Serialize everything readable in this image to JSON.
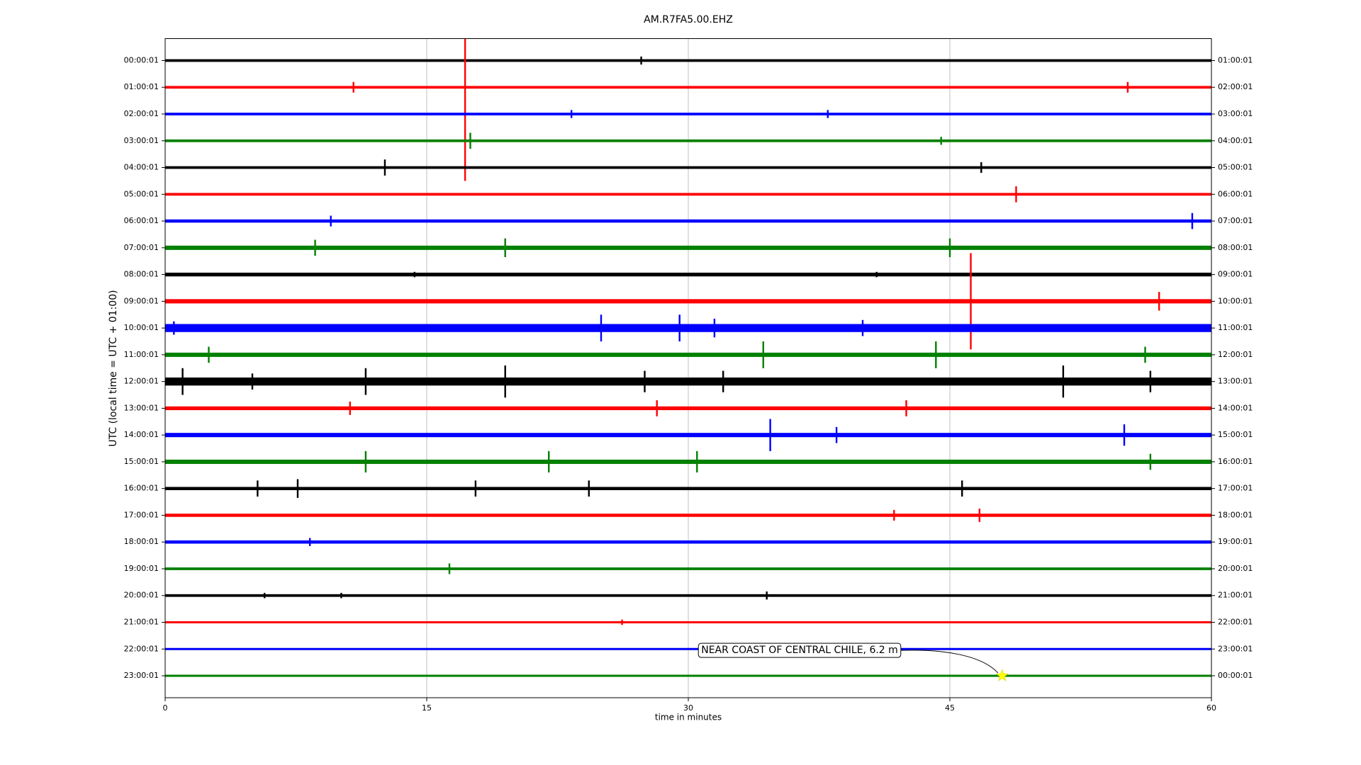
{
  "chart_data": {
    "type": "helicorder",
    "title": "AM.R7FA5.00.EHZ",
    "xlabel": "time in minutes",
    "ylabel": "UTC (local time = UTC + 01:00)",
    "xlim": [
      0,
      60
    ],
    "xticks": [
      0,
      15,
      30,
      45,
      60
    ],
    "grid": true,
    "rows": [
      {
        "label": "00:00:01",
        "right_label": "01:00:01",
        "color": "#000000",
        "noise": 0.05,
        "events": [
          {
            "minute": 27.3,
            "amplitude": 0.15
          }
        ]
      },
      {
        "label": "01:00:01",
        "right_label": "02:00:01",
        "color": "#ff0000",
        "noise": 0.05,
        "events": [
          {
            "minute": 10.8,
            "amplitude": 0.2
          },
          {
            "minute": 17.2,
            "amplitude": 3.5
          },
          {
            "minute": 55.2,
            "amplitude": 0.2
          }
        ]
      },
      {
        "label": "02:00:01",
        "right_label": "03:00:01",
        "color": "#0000ff",
        "noise": 0.05,
        "events": [
          {
            "minute": 23.3,
            "amplitude": 0.15
          },
          {
            "minute": 38,
            "amplitude": 0.15
          }
        ]
      },
      {
        "label": "03:00:01",
        "right_label": "04:00:01",
        "color": "#008000",
        "noise": 0.05,
        "events": [
          {
            "minute": 17.5,
            "amplitude": 0.3
          },
          {
            "minute": 44.5,
            "amplitude": 0.15
          }
        ]
      },
      {
        "label": "04:00:01",
        "right_label": "05:00:01",
        "color": "#000000",
        "noise": 0.05,
        "events": [
          {
            "minute": 12.6,
            "amplitude": 0.3
          },
          {
            "minute": 46.8,
            "amplitude": 0.2
          }
        ]
      },
      {
        "label": "05:00:01",
        "right_label": "06:00:01",
        "color": "#ff0000",
        "noise": 0.05,
        "events": [
          {
            "minute": 48.8,
            "amplitude": 0.3
          }
        ]
      },
      {
        "label": "06:00:01",
        "right_label": "07:00:01",
        "color": "#0000ff",
        "noise": 0.06,
        "events": [
          {
            "minute": 9.5,
            "amplitude": 0.2
          },
          {
            "minute": 58.9,
            "amplitude": 0.3
          }
        ]
      },
      {
        "label": "07:00:01",
        "right_label": "08:00:01",
        "color": "#008000",
        "noise": 0.08,
        "events": [
          {
            "minute": 8.6,
            "amplitude": 0.3
          },
          {
            "minute": 19.5,
            "amplitude": 0.35
          },
          {
            "minute": 45,
            "amplitude": 0.35
          }
        ]
      },
      {
        "label": "08:00:01",
        "right_label": "09:00:01",
        "color": "#000000",
        "noise": 0.07,
        "events": [
          {
            "minute": 14.3,
            "amplitude": 0.1
          },
          {
            "minute": 40.8,
            "amplitude": 0.1
          }
        ]
      },
      {
        "label": "09:00:01",
        "right_label": "10:00:01",
        "color": "#ff0000",
        "noise": 0.08,
        "events": [
          {
            "minute": 46.2,
            "amplitude": 1.8
          },
          {
            "minute": 57,
            "amplitude": 0.35
          }
        ]
      },
      {
        "label": "10:00:01",
        "right_label": "11:00:01",
        "color": "#0000ff",
        "noise": 0.15,
        "events": [
          {
            "minute": 0.5,
            "amplitude": 0.25
          },
          {
            "minute": 25,
            "amplitude": 0.5
          },
          {
            "minute": 29.5,
            "amplitude": 0.5
          },
          {
            "minute": 31.5,
            "amplitude": 0.35
          },
          {
            "minute": 40,
            "amplitude": 0.3
          }
        ]
      },
      {
        "label": "11:00:01",
        "right_label": "12:00:01",
        "color": "#008000",
        "noise": 0.08,
        "events": [
          {
            "minute": 2.5,
            "amplitude": 0.3
          },
          {
            "minute": 34.3,
            "amplitude": 0.5
          },
          {
            "minute": 44.2,
            "amplitude": 0.5
          },
          {
            "minute": 56.2,
            "amplitude": 0.3
          }
        ]
      },
      {
        "label": "12:00:01",
        "right_label": "13:00:01",
        "color": "#000000",
        "noise": 0.15,
        "events": [
          {
            "minute": 1,
            "amplitude": 0.5
          },
          {
            "minute": 5,
            "amplitude": 0.3
          },
          {
            "minute": 11.5,
            "amplitude": 0.5
          },
          {
            "minute": 19.5,
            "amplitude": 0.6
          },
          {
            "minute": 27.5,
            "amplitude": 0.4
          },
          {
            "minute": 32,
            "amplitude": 0.4
          },
          {
            "minute": 51.5,
            "amplitude": 0.6
          },
          {
            "minute": 56.5,
            "amplitude": 0.4
          }
        ]
      },
      {
        "label": "13:00:01",
        "right_label": "14:00:01",
        "color": "#ff0000",
        "noise": 0.07,
        "events": [
          {
            "minute": 10.6,
            "amplitude": 0.25
          },
          {
            "minute": 28.2,
            "amplitude": 0.3
          },
          {
            "minute": 42.5,
            "amplitude": 0.3
          }
        ]
      },
      {
        "label": "14:00:01",
        "right_label": "15:00:01",
        "color": "#0000ff",
        "noise": 0.08,
        "events": [
          {
            "minute": 34.7,
            "amplitude": 0.6
          },
          {
            "minute": 38.5,
            "amplitude": 0.3
          },
          {
            "minute": 55,
            "amplitude": 0.4
          }
        ]
      },
      {
        "label": "15:00:01",
        "right_label": "16:00:01",
        "color": "#008000",
        "noise": 0.08,
        "events": [
          {
            "minute": 11.5,
            "amplitude": 0.4
          },
          {
            "minute": 22,
            "amplitude": 0.4
          },
          {
            "minute": 30.5,
            "amplitude": 0.4
          },
          {
            "minute": 56.5,
            "amplitude": 0.3
          }
        ]
      },
      {
        "label": "16:00:01",
        "right_label": "17:00:01",
        "color": "#000000",
        "noise": 0.06,
        "events": [
          {
            "minute": 5.3,
            "amplitude": 0.3
          },
          {
            "minute": 7.6,
            "amplitude": 0.35
          },
          {
            "minute": 17.8,
            "amplitude": 0.3
          },
          {
            "minute": 24.3,
            "amplitude": 0.3
          },
          {
            "minute": 45.7,
            "amplitude": 0.3
          }
        ]
      },
      {
        "label": "17:00:01",
        "right_label": "18:00:01",
        "color": "#ff0000",
        "noise": 0.06,
        "events": [
          {
            "minute": 41.8,
            "amplitude": 0.2
          },
          {
            "minute": 46.7,
            "amplitude": 0.25
          }
        ]
      },
      {
        "label": "18:00:01",
        "right_label": "19:00:01",
        "color": "#0000ff",
        "noise": 0.06,
        "events": [
          {
            "minute": 8.3,
            "amplitude": 0.15
          }
        ]
      },
      {
        "label": "19:00:01",
        "right_label": "20:00:01",
        "color": "#008000",
        "noise": 0.05,
        "events": [
          {
            "minute": 16.3,
            "amplitude": 0.2
          }
        ]
      },
      {
        "label": "20:00:01",
        "right_label": "21:00:01",
        "color": "#000000",
        "noise": 0.05,
        "events": [
          {
            "minute": 5.7,
            "amplitude": 0.1
          },
          {
            "minute": 10.1,
            "amplitude": 0.1
          },
          {
            "minute": 34.5,
            "amplitude": 0.15
          }
        ]
      },
      {
        "label": "21:00:01",
        "right_label": "22:00:01",
        "color": "#ff0000",
        "noise": 0.04,
        "events": [
          {
            "minute": 26.2,
            "amplitude": 0.1
          }
        ]
      },
      {
        "label": "22:00:01",
        "right_label": "23:00:01",
        "color": "#0000ff",
        "noise": 0.04,
        "events": []
      },
      {
        "label": "23:00:01",
        "right_label": "00:00:01",
        "color": "#008000",
        "noise": 0.04,
        "events": []
      }
    ],
    "annotation": {
      "text": "NEAR COAST OF CENTRAL CHILE, 6.2 m",
      "row": 23,
      "minute": 48
    }
  }
}
